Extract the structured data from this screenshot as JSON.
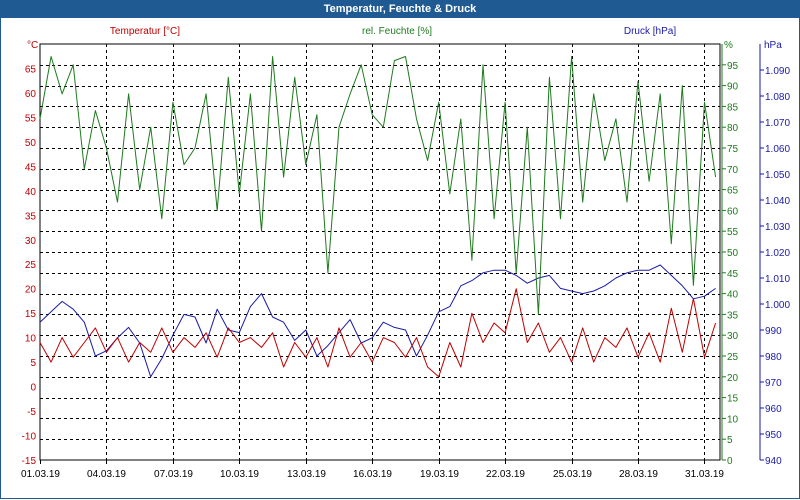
{
  "chart_data": {
    "type": "line",
    "title": "Temperatur, Feuchte & Druck",
    "x_tick_labels": [
      "01.03.19",
      "04.03.19",
      "07.03.19",
      "10.03.19",
      "13.03.19",
      "16.03.19",
      "19.03.19",
      "22.03.19",
      "25.03.19",
      "28.03.19",
      "31.03.19"
    ],
    "x_range_days": [
      0,
      30.7
    ],
    "grid": true,
    "axes": {
      "temperature": {
        "label": "Temperatur [°C]",
        "unit": "°C",
        "ylim": [
          -15,
          70
        ],
        "ticks": [
          -15,
          -10,
          -5,
          0,
          5,
          10,
          15,
          20,
          25,
          30,
          35,
          40,
          45,
          50,
          55,
          60,
          65
        ],
        "color": "#c00000",
        "side": "left"
      },
      "humidity": {
        "label": "rel. Feuchte [%]",
        "unit": "%",
        "ylim": [
          0,
          100
        ],
        "ticks": [
          0,
          5,
          10,
          15,
          20,
          25,
          30,
          35,
          40,
          45,
          50,
          55,
          60,
          65,
          70,
          75,
          80,
          85,
          90,
          95
        ],
        "color": "#1e7a1e",
        "side": "right"
      },
      "pressure": {
        "label": "Druck [hPa]",
        "unit": "hPa",
        "ylim": [
          940,
          1100
        ],
        "ticks": [
          940,
          950,
          960,
          970,
          980,
          990,
          1000,
          1010,
          1020,
          1030,
          1040,
          1050,
          1060,
          1070,
          1080,
          1090
        ],
        "tick_labels": [
          "940",
          "950",
          "960",
          "970",
          "980",
          "990",
          "1.000",
          "1.010",
          "1.020",
          "1.030",
          "1.040",
          "1.050",
          "1.060",
          "1.070",
          "1.080",
          "1.090"
        ],
        "color": "#1a1aa8",
        "side": "right"
      }
    },
    "series": [
      {
        "name": "Temperatur [°C]",
        "axis": "temperature",
        "color": "#c00000",
        "x": [
          0,
          0.5,
          1,
          1.5,
          2,
          2.5,
          3,
          3.5,
          4,
          4.5,
          5,
          5.5,
          6,
          6.5,
          7,
          7.5,
          8,
          8.5,
          9,
          9.5,
          10,
          10.5,
          11,
          11.5,
          12,
          12.5,
          13,
          13.5,
          14,
          14.5,
          15,
          15.5,
          16,
          16.5,
          17,
          17.5,
          18,
          18.5,
          19,
          19.5,
          20,
          20.5,
          21,
          21.5,
          22,
          22.5,
          23,
          23.5,
          24,
          24.5,
          25,
          25.5,
          26,
          26.5,
          27,
          27.5,
          28,
          28.5,
          29,
          29.5,
          30,
          30.5
        ],
        "y": [
          9,
          5,
          10,
          6,
          9,
          12,
          7,
          10,
          5,
          9,
          7,
          12,
          7,
          10,
          8,
          11,
          6,
          12,
          9,
          10,
          8,
          11,
          4,
          9,
          6,
          10,
          4,
          12,
          6,
          9,
          5,
          10,
          9,
          6,
          10,
          4,
          2,
          9,
          4,
          15,
          9,
          13,
          11,
          20,
          9,
          13,
          7,
          10,
          5,
          12,
          5,
          10,
          8,
          12,
          6,
          11,
          5,
          16,
          7,
          18,
          6,
          13
        ]
      },
      {
        "name": "rel. Feuchte [%]",
        "axis": "humidity",
        "color": "#1e7a1e",
        "x": [
          0,
          0.5,
          1,
          1.5,
          2,
          2.5,
          3,
          3.5,
          4,
          4.5,
          5,
          5.5,
          6,
          6.5,
          7,
          7.5,
          8,
          8.5,
          9,
          9.5,
          10,
          10.5,
          11,
          11.5,
          12,
          12.5,
          13,
          13.5,
          14,
          14.5,
          15,
          15.5,
          16,
          16.5,
          17,
          17.5,
          18,
          18.5,
          19,
          19.5,
          20,
          20.5,
          21,
          21.5,
          22,
          22.5,
          23,
          23.5,
          24,
          24.5,
          25,
          25.5,
          26,
          26.5,
          27,
          27.5,
          28,
          28.5,
          29,
          29.5,
          30,
          30.5
        ],
        "y": [
          82,
          97,
          88,
          95,
          70,
          84,
          75,
          62,
          88,
          65,
          80,
          58,
          86,
          71,
          75,
          88,
          60,
          92,
          64,
          88,
          55,
          97,
          68,
          92,
          71,
          83,
          45,
          80,
          88,
          95,
          83,
          80,
          96,
          97,
          82,
          72,
          86,
          64,
          82,
          48,
          95,
          58,
          86,
          45,
          80,
          35,
          92,
          58,
          97,
          62,
          88,
          72,
          82,
          62,
          91,
          67,
          88,
          52,
          90,
          42,
          86,
          68
        ]
      },
      {
        "name": "Druck [hPa]",
        "axis": "pressure",
        "color": "#1a1aa8",
        "x": [
          0,
          0.5,
          1,
          1.5,
          2,
          2.5,
          3,
          3.5,
          4,
          4.5,
          5,
          5.5,
          6,
          6.5,
          7,
          7.5,
          8,
          8.5,
          9,
          9.5,
          10,
          10.5,
          11,
          11.5,
          12,
          12.5,
          13,
          13.5,
          14,
          14.5,
          15,
          15.5,
          16,
          16.5,
          17,
          17.5,
          18,
          18.5,
          19,
          19.5,
          20,
          20.5,
          21,
          21.5,
          22,
          22.5,
          23,
          23.5,
          24,
          24.5,
          25,
          25.5,
          26,
          26.5,
          27,
          27.5,
          28,
          28.5,
          29,
          29.5,
          30,
          30.5
        ],
        "y": [
          993,
          997,
          1001,
          998,
          993,
          980,
          982,
          987,
          991,
          985,
          972,
          979,
          988,
          996,
          995,
          985,
          998,
          990,
          989,
          999,
          1004,
          995,
          993,
          986,
          990,
          980,
          984,
          989,
          994,
          985,
          987,
          993,
          991,
          990,
          980,
          988,
          997,
          999,
          1007,
          1009,
          1012,
          1013,
          1013,
          1011,
          1008,
          1010,
          1011,
          1006,
          1005,
          1004,
          1005,
          1007,
          1010,
          1012,
          1013,
          1013,
          1015,
          1011,
          1007,
          1002,
          1003,
          1006
        ]
      }
    ]
  }
}
